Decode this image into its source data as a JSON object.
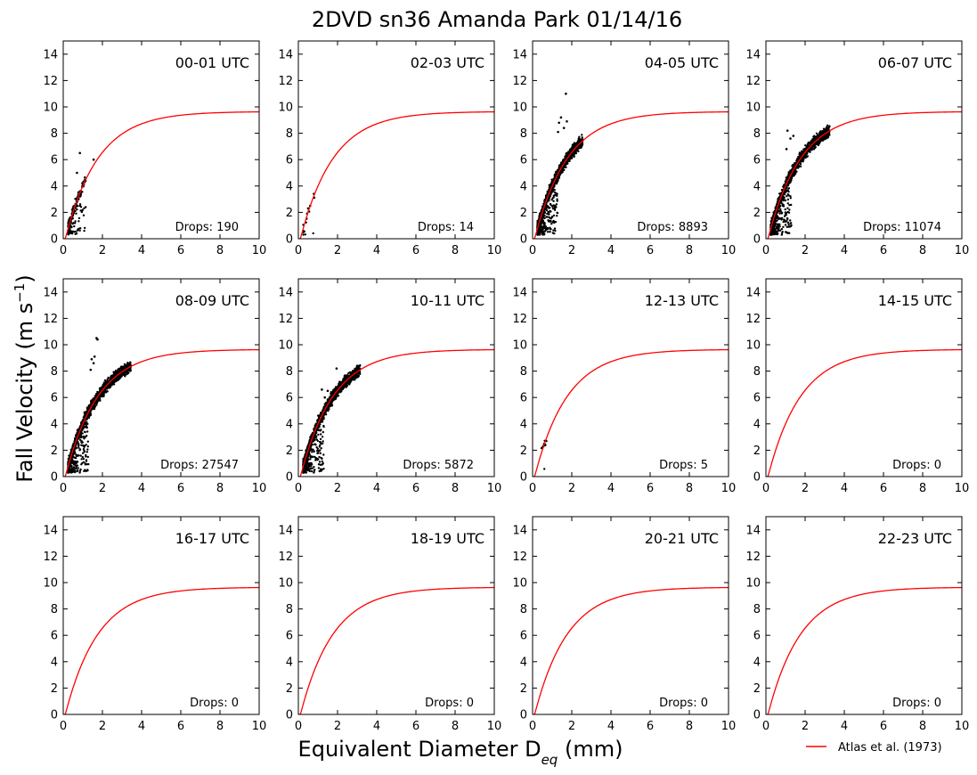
{
  "figure": {
    "title": "2DVD sn36 Amanda Park 01/14/16",
    "ylabel": "Fall Velocity (m s",
    "ylabel_sup": "−1",
    "ylabel_end": ")",
    "xlabel": "Equivalent Diameter D",
    "xlabel_sub": "eq",
    "xlabel_end": " (mm)",
    "legend": {
      "label": "Atlas et al. (1973)",
      "color": "#ff0000",
      "placement": "bottom-right, outside panels"
    }
  },
  "chart_data": {
    "type": "scatter",
    "layout": "4x3 grid of small multiples",
    "xlim": [
      0,
      10
    ],
    "ylim": [
      0,
      15
    ],
    "xticks": [
      0,
      2,
      4,
      6,
      8,
      10
    ],
    "yticks": [
      0,
      2,
      4,
      6,
      8,
      10,
      12,
      14
    ],
    "reference_curve": {
      "name": "Atlas et al. (1973)",
      "formula": "V = 9.65 - 10.3*exp(-0.6*D)",
      "color": "#ff0000"
    },
    "point_color": "#000000",
    "panels": [
      {
        "label": "00-01 UTC",
        "drops_text": "Drops: 190",
        "count": 190,
        "dmax": 1.2,
        "outliers": [
          [
            0.85,
            6.5
          ],
          [
            1.55,
            6.0
          ],
          [
            0.7,
            5.0
          ]
        ]
      },
      {
        "label": "02-03 UTC",
        "drops_text": "Drops: 14",
        "count": 14,
        "dmax": 0.9,
        "outliers": [
          [
            0.5,
            2.3
          ],
          [
            0.6,
            2.5
          ]
        ]
      },
      {
        "label": "04-05 UTC",
        "drops_text": "Drops: 8893",
        "count": 8893,
        "dmax": 2.6,
        "outliers": [
          [
            1.7,
            11.0
          ],
          [
            1.45,
            9.2
          ],
          [
            1.35,
            8.8
          ],
          [
            1.6,
            8.4
          ],
          [
            1.75,
            8.9
          ],
          [
            1.3,
            8.1
          ]
        ]
      },
      {
        "label": "06-07 UTC",
        "drops_text": "Drops: 11074",
        "count": 11074,
        "dmax": 3.3,
        "outliers": [
          [
            1.1,
            8.2
          ],
          [
            1.25,
            7.6
          ],
          [
            1.05,
            6.8
          ],
          [
            1.4,
            7.8
          ],
          [
            3.2,
            8.3
          ]
        ]
      },
      {
        "label": "08-09 UTC",
        "drops_text": "Drops: 27547",
        "count": 27547,
        "dmax": 3.5,
        "outliers": [
          [
            1.7,
            10.5
          ],
          [
            1.75,
            10.4
          ],
          [
            1.45,
            8.9
          ],
          [
            1.6,
            9.1
          ],
          [
            1.4,
            8.1
          ],
          [
            1.55,
            8.6
          ]
        ]
      },
      {
        "label": "10-11 UTC",
        "drops_text": "Drops: 5872",
        "count": 5872,
        "dmax": 3.2,
        "outliers": [
          [
            1.95,
            8.2
          ],
          [
            3.0,
            8.4
          ],
          [
            1.2,
            6.6
          ],
          [
            1.35,
            6.0
          ],
          [
            1.5,
            6.5
          ]
        ]
      },
      {
        "label": "12-13 UTC",
        "drops_text": "Drops: 5",
        "count": 5,
        "dmax": 0.7,
        "outliers": [
          [
            0.6,
            2.5
          ],
          [
            0.7,
            2.7
          ],
          [
            0.5,
            2.2
          ],
          [
            0.65,
            2.4
          ],
          [
            0.55,
            2.3
          ]
        ]
      },
      {
        "label": "14-15 UTC",
        "drops_text": "Drops: 0",
        "count": 0,
        "dmax": 0,
        "outliers": []
      },
      {
        "label": "16-17 UTC",
        "drops_text": "Drops: 0",
        "count": 0,
        "dmax": 0,
        "outliers": []
      },
      {
        "label": "18-19 UTC",
        "drops_text": "Drops: 0",
        "count": 0,
        "dmax": 0,
        "outliers": []
      },
      {
        "label": "20-21 UTC",
        "drops_text": "Drops: 0",
        "count": 0,
        "dmax": 0,
        "outliers": []
      },
      {
        "label": "22-23 UTC",
        "drops_text": "Drops: 0",
        "count": 0,
        "dmax": 0,
        "outliers": []
      }
    ]
  }
}
